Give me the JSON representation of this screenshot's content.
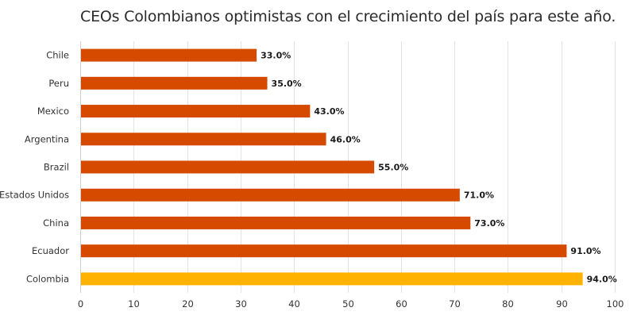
{
  "chart_data": {
    "type": "bar",
    "orientation": "horizontal",
    "title": "CEOs Colombianos optimistas con el crecimiento del país para este año.",
    "categories": [
      "Chile",
      "Peru",
      "Mexico",
      "Argentina",
      "Brazil",
      "Estados Unidos",
      "China",
      "Ecuador",
      "Colombia"
    ],
    "values": [
      33.0,
      35.0,
      43.0,
      46.0,
      55.0,
      71.0,
      73.0,
      91.0,
      94.0
    ],
    "data_labels": [
      "33.0%",
      "35.0%",
      "43.0%",
      "46.0%",
      "55.0%",
      "71.0%",
      "73.0%",
      "91.0%",
      "94.0%"
    ],
    "xlim": [
      0,
      100
    ],
    "x_ticks": [
      0,
      10,
      20,
      30,
      40,
      50,
      60,
      70,
      80,
      90,
      100
    ],
    "xlabel": "",
    "ylabel": "",
    "grid": true,
    "legend": "none",
    "colors": {
      "bar": "#d64a00",
      "highlight": "#ffb300",
      "highlight_category": "Colombia"
    }
  }
}
